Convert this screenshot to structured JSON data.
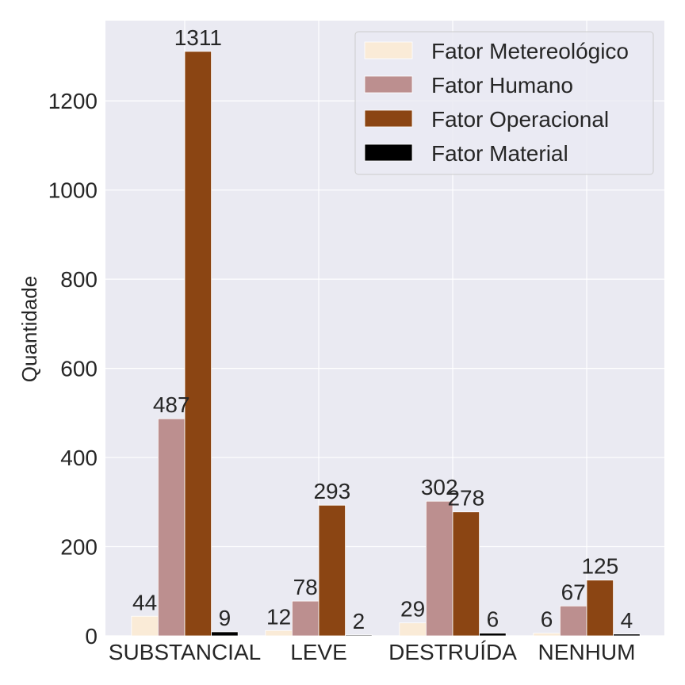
{
  "chart_data": {
    "type": "bar",
    "categories": [
      "SUBSTANCIAL",
      "LEVE",
      "DESTRUÍDA",
      "NENHUM"
    ],
    "series": [
      {
        "name": "Fator Metereológico",
        "values": [
          44,
          12,
          29,
          6
        ],
        "color": "#FAEBD7"
      },
      {
        "name": "Fator Humano",
        "values": [
          487,
          78,
          302,
          67
        ],
        "color": "#BC8F8F"
      },
      {
        "name": "Fator Operacional",
        "values": [
          1311,
          293,
          278,
          125
        ],
        "color": "#8B4513"
      },
      {
        "name": "Fator Material",
        "values": [
          9,
          2,
          6,
          4
        ],
        "color": "#000000"
      }
    ],
    "xlabel": "",
    "ylabel": "Quantidade",
    "ylim": [
      0,
      1380
    ],
    "yticks": [
      0,
      200,
      400,
      600,
      800,
      1000,
      1200
    ],
    "grid": true,
    "legend_position": "top-right",
    "background": "#EAEAF2"
  }
}
